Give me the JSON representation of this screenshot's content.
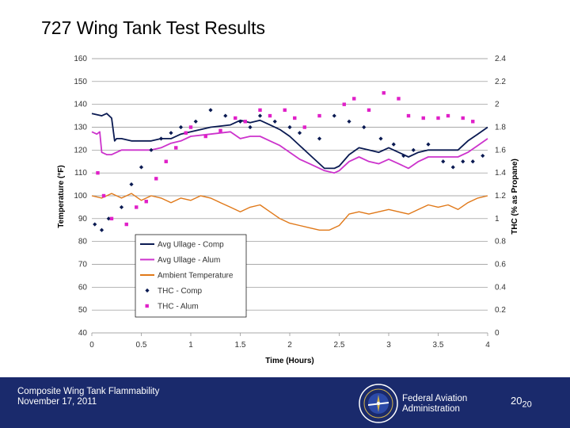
{
  "slide": {
    "title": "727 Wing Tank Test Results",
    "footer_left_line1": "Composite Wing Tank Flammability",
    "footer_left_line2": "November 17, 2011",
    "footer_org_line1": "Federal Aviation",
    "footer_org_line2": "Administration",
    "page_number": "20",
    "page_number_sub": "20",
    "colors": {
      "footer_bg": "#1a2a6c",
      "footer_text": "#ffffff"
    }
  },
  "chart_data": {
    "type": "line",
    "title": "",
    "xlabel": "Time (Hours)",
    "ylabel": "Temperature (°F)",
    "y2label": "THC (% as Propane)",
    "xlim": [
      0,
      4
    ],
    "ylim": [
      40,
      160
    ],
    "y2lim": [
      0,
      2.4
    ],
    "xticks": [
      "0",
      "0.5",
      "1",
      "1.5",
      "2",
      "2.5",
      "3",
      "3.5",
      "4"
    ],
    "yticks": [
      "40",
      "50",
      "60",
      "70",
      "80",
      "90",
      "100",
      "110",
      "120",
      "130",
      "140",
      "150",
      "160"
    ],
    "y2ticks": [
      "0",
      "0.2",
      "0.4",
      "0.6",
      "0.8",
      "1",
      "1.2",
      "1.4",
      "1.6",
      "1.8",
      "2",
      "2.2",
      "2.4"
    ],
    "grid": true,
    "legend_position": "center-left",
    "series": [
      {
        "name": "Avg Ullage - Comp",
        "kind": "line",
        "axis": "left",
        "color": "#0a1a52",
        "x": [
          0,
          0.1,
          0.15,
          0.2,
          0.23,
          0.25,
          0.3,
          0.4,
          0.5,
          0.6,
          0.7,
          0.8,
          0.9,
          1.0,
          1.2,
          1.4,
          1.5,
          1.6,
          1.7,
          1.8,
          1.9,
          2.0,
          2.1,
          2.2,
          2.35,
          2.45,
          2.5,
          2.6,
          2.7,
          2.8,
          2.9,
          3.0,
          3.1,
          3.2,
          3.3,
          3.4,
          3.5,
          3.6,
          3.7,
          3.8,
          3.9,
          4.0
        ],
        "y": [
          136,
          135,
          136,
          134,
          124,
          125,
          125,
          124,
          124,
          124,
          125,
          125,
          127,
          128,
          130,
          131,
          133,
          132,
          133,
          131,
          129,
          126,
          122,
          118,
          112,
          112,
          113,
          118,
          121,
          120,
          119,
          121,
          119,
          117,
          119,
          120,
          120,
          120,
          120,
          124,
          127,
          130
        ]
      },
      {
        "name": "Avg Ullage - Alum",
        "kind": "line",
        "axis": "left",
        "color": "#cc33cc",
        "x": [
          0,
          0.05,
          0.08,
          0.1,
          0.15,
          0.2,
          0.3,
          0.4,
          0.5,
          0.6,
          0.7,
          0.8,
          0.9,
          1.0,
          1.2,
          1.4,
          1.5,
          1.6,
          1.7,
          1.8,
          1.9,
          2.0,
          2.1,
          2.2,
          2.35,
          2.45,
          2.5,
          2.6,
          2.7,
          2.8,
          2.9,
          3.0,
          3.1,
          3.2,
          3.3,
          3.4,
          3.5,
          3.6,
          3.7,
          3.8,
          3.9,
          4.0
        ],
        "y": [
          128,
          127,
          128,
          119,
          118,
          118,
          120,
          120,
          120,
          120,
          121,
          123,
          124,
          126,
          127,
          128,
          125,
          126,
          126,
          124,
          122,
          119,
          116,
          114,
          111,
          110,
          111,
          115,
          117,
          115,
          114,
          116,
          114,
          112,
          115,
          117,
          117,
          117,
          117,
          119,
          122,
          125
        ]
      },
      {
        "name": "Ambient Temperature",
        "kind": "line",
        "axis": "left",
        "color": "#e07818",
        "x": [
          0,
          0.1,
          0.2,
          0.3,
          0.4,
          0.5,
          0.6,
          0.7,
          0.8,
          0.9,
          1.0,
          1.1,
          1.2,
          1.3,
          1.4,
          1.5,
          1.6,
          1.7,
          1.8,
          1.9,
          2.0,
          2.1,
          2.2,
          2.3,
          2.4,
          2.5,
          2.6,
          2.7,
          2.8,
          2.9,
          3.0,
          3.1,
          3.2,
          3.3,
          3.4,
          3.5,
          3.6,
          3.7,
          3.8,
          3.9,
          4.0
        ],
        "y": [
          100,
          99,
          101,
          99,
          101,
          98,
          100,
          99,
          97,
          99,
          98,
          100,
          99,
          97,
          95,
          93,
          95,
          96,
          93,
          90,
          88,
          87,
          86,
          85,
          85,
          87,
          92,
          93,
          92,
          93,
          94,
          93,
          92,
          94,
          96,
          95,
          96,
          94,
          97,
          99,
          100
        ]
      },
      {
        "name": "THC - Comp",
        "kind": "scatter",
        "axis": "right",
        "color": "#0a1a52",
        "x": [
          0.03,
          0.1,
          0.17,
          0.3,
          0.4,
          0.5,
          0.6,
          0.7,
          0.8,
          0.9,
          1.05,
          1.2,
          1.35,
          1.5,
          1.6,
          1.7,
          1.85,
          2.0,
          2.1,
          2.3,
          2.45,
          2.6,
          2.75,
          2.92,
          3.05,
          3.15,
          3.25,
          3.4,
          3.55,
          3.65,
          3.75,
          3.85,
          3.95
        ],
        "y": [
          0.95,
          0.9,
          1.0,
          1.1,
          1.3,
          1.45,
          1.6,
          1.7,
          1.75,
          1.8,
          1.85,
          1.95,
          1.9,
          1.85,
          1.8,
          1.9,
          1.85,
          1.8,
          1.75,
          1.7,
          1.9,
          1.85,
          1.8,
          1.7,
          1.65,
          1.55,
          1.6,
          1.65,
          1.5,
          1.45,
          1.5,
          1.5,
          1.55
        ]
      },
      {
        "name": "THC - Alum",
        "kind": "scatter",
        "axis": "right",
        "color": "#e020c8",
        "x": [
          0.06,
          0.12,
          0.2,
          0.35,
          0.45,
          0.55,
          0.65,
          0.75,
          0.85,
          0.95,
          1.0,
          1.15,
          1.3,
          1.45,
          1.55,
          1.7,
          1.8,
          1.95,
          2.05,
          2.15,
          2.3,
          2.55,
          2.65,
          2.8,
          2.95,
          3.1,
          3.2,
          3.35,
          3.5,
          3.6,
          3.75,
          3.85
        ],
        "y": [
          1.4,
          1.2,
          1.0,
          0.95,
          1.1,
          1.15,
          1.35,
          1.5,
          1.62,
          1.75,
          1.8,
          1.72,
          1.77,
          1.88,
          1.85,
          1.95,
          1.9,
          1.95,
          1.88,
          1.8,
          1.9,
          2.0,
          2.05,
          1.95,
          2.1,
          2.05,
          1.9,
          1.88,
          1.88,
          1.9,
          1.88,
          1.85
        ]
      }
    ]
  }
}
